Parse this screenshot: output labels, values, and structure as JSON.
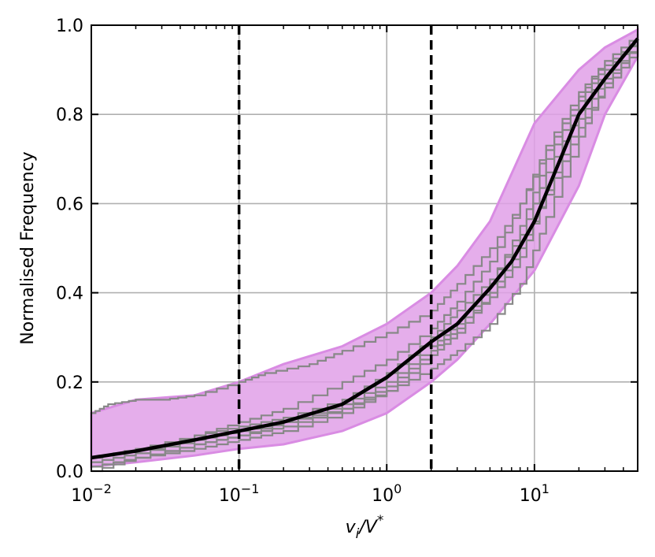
{
  "chart_data": {
    "type": "line",
    "title": "",
    "xlabel": "v_i/V*",
    "ylabel": "Normalised Frequency",
    "xscale": "log",
    "xlim": [
      0.01,
      50
    ],
    "ylim": [
      0.0,
      1.0
    ],
    "grid": true,
    "x_ticks": [
      {
        "value": 0.01,
        "base": "10",
        "exp": "−2"
      },
      {
        "value": 0.1,
        "base": "10",
        "exp": "−1"
      },
      {
        "value": 1,
        "base": "10",
        "exp": "0"
      },
      {
        "value": 10,
        "base": "10",
        "exp": "1"
      }
    ],
    "y_ticks": [
      {
        "value": 0.0,
        "label": "0.0"
      },
      {
        "value": 0.2,
        "label": "0.2"
      },
      {
        "value": 0.4,
        "label": "0.4"
      },
      {
        "value": 0.6,
        "label": "0.6"
      },
      {
        "value": 0.8,
        "label": "0.8"
      },
      {
        "value": 1.0,
        "label": "1.0"
      }
    ],
    "vlines": [
      0.1,
      2.0
    ],
    "band": {
      "x": [
        0.01,
        0.02,
        0.05,
        0.1,
        0.2,
        0.5,
        1.0,
        2.0,
        3.0,
        5.0,
        10.0,
        20.0,
        30.0,
        50.0
      ],
      "lower": [
        0.01,
        0.02,
        0.035,
        0.05,
        0.06,
        0.09,
        0.13,
        0.2,
        0.25,
        0.33,
        0.45,
        0.64,
        0.8,
        0.93
      ],
      "upper": [
        0.13,
        0.16,
        0.17,
        0.2,
        0.24,
        0.28,
        0.33,
        0.4,
        0.46,
        0.56,
        0.78,
        0.9,
        0.95,
        0.99
      ],
      "color": "#e0a0e8"
    },
    "mean_line": {
      "color": "#000000",
      "x": [
        0.01,
        0.02,
        0.05,
        0.1,
        0.2,
        0.5,
        1.0,
        2.0,
        3.0,
        5.0,
        7.0,
        10.0,
        15.0,
        20.0,
        30.0,
        50.0
      ],
      "y": [
        0.03,
        0.045,
        0.07,
        0.09,
        0.11,
        0.15,
        0.21,
        0.29,
        0.33,
        0.41,
        0.47,
        0.56,
        0.7,
        0.8,
        0.88,
        0.97
      ]
    },
    "series": [
      {
        "color": "#888888",
        "x": [
          0.01,
          0.013,
          0.02,
          0.03,
          0.05,
          0.1,
          0.15,
          0.3,
          0.5,
          1.0,
          2.0,
          3.0,
          5.0,
          8.0,
          12.0,
          20.0,
          30.0,
          50.0
        ],
        "y": [
          0.13,
          0.15,
          0.16,
          0.16,
          0.17,
          0.2,
          0.22,
          0.24,
          0.27,
          0.31,
          0.36,
          0.42,
          0.5,
          0.6,
          0.72,
          0.84,
          0.92,
          0.98
        ]
      },
      {
        "color": "#888888",
        "x": [
          0.01,
          0.02,
          0.05,
          0.1,
          0.2,
          0.5,
          1.0,
          2.0,
          3.0,
          5.0,
          8.0,
          12.0,
          20.0,
          30.0,
          50.0
        ],
        "y": [
          0.0,
          0.03,
          0.06,
          0.08,
          0.11,
          0.14,
          0.18,
          0.23,
          0.27,
          0.33,
          0.42,
          0.57,
          0.75,
          0.87,
          0.96
        ]
      },
      {
        "color": "#888888",
        "x": [
          0.01,
          0.02,
          0.05,
          0.1,
          0.2,
          0.5,
          1.0,
          2.0,
          3.0,
          5.0,
          8.0,
          12.0,
          20.0,
          30.0,
          50.0
        ],
        "y": [
          0.02,
          0.04,
          0.08,
          0.1,
          0.12,
          0.16,
          0.22,
          0.3,
          0.36,
          0.43,
          0.53,
          0.67,
          0.81,
          0.9,
          0.97
        ]
      },
      {
        "color": "#888888",
        "x": [
          0.01,
          0.02,
          0.05,
          0.1,
          0.2,
          0.5,
          1.0,
          2.0,
          3.0,
          5.0,
          8.0,
          12.0,
          20.0,
          30.0,
          50.0
        ],
        "y": [
          0.01,
          0.03,
          0.05,
          0.07,
          0.09,
          0.13,
          0.18,
          0.26,
          0.31,
          0.4,
          0.5,
          0.62,
          0.77,
          0.86,
          0.95
        ]
      },
      {
        "color": "#888888",
        "x": [
          0.01,
          0.02,
          0.05,
          0.1,
          0.2,
          0.5,
          1.0,
          2.0,
          3.0,
          5.0,
          8.0,
          12.0,
          20.0,
          30.0,
          50.0
        ],
        "y": [
          0.03,
          0.05,
          0.08,
          0.11,
          0.14,
          0.2,
          0.25,
          0.32,
          0.38,
          0.47,
          0.6,
          0.73,
          0.85,
          0.92,
          0.98
        ]
      },
      {
        "color": "#888888",
        "x": [
          0.01,
          0.02,
          0.05,
          0.1,
          0.2,
          0.5,
          1.0,
          2.0,
          3.0,
          5.0,
          8.0,
          12.0,
          20.0,
          30.0,
          50.0
        ],
        "y": [
          0.02,
          0.04,
          0.07,
          0.09,
          0.11,
          0.15,
          0.2,
          0.28,
          0.33,
          0.39,
          0.48,
          0.63,
          0.79,
          0.88,
          0.96
        ]
      },
      {
        "color": "#888888",
        "x": [
          0.01,
          0.02,
          0.05,
          0.1,
          0.2,
          0.5,
          1.0,
          2.0,
          3.0,
          5.0,
          8.0,
          12.0,
          20.0,
          30.0,
          50.0
        ],
        "y": [
          0.01,
          0.03,
          0.06,
          0.08,
          0.1,
          0.14,
          0.19,
          0.27,
          0.32,
          0.42,
          0.55,
          0.7,
          0.83,
          0.91,
          0.97
        ]
      }
    ]
  }
}
